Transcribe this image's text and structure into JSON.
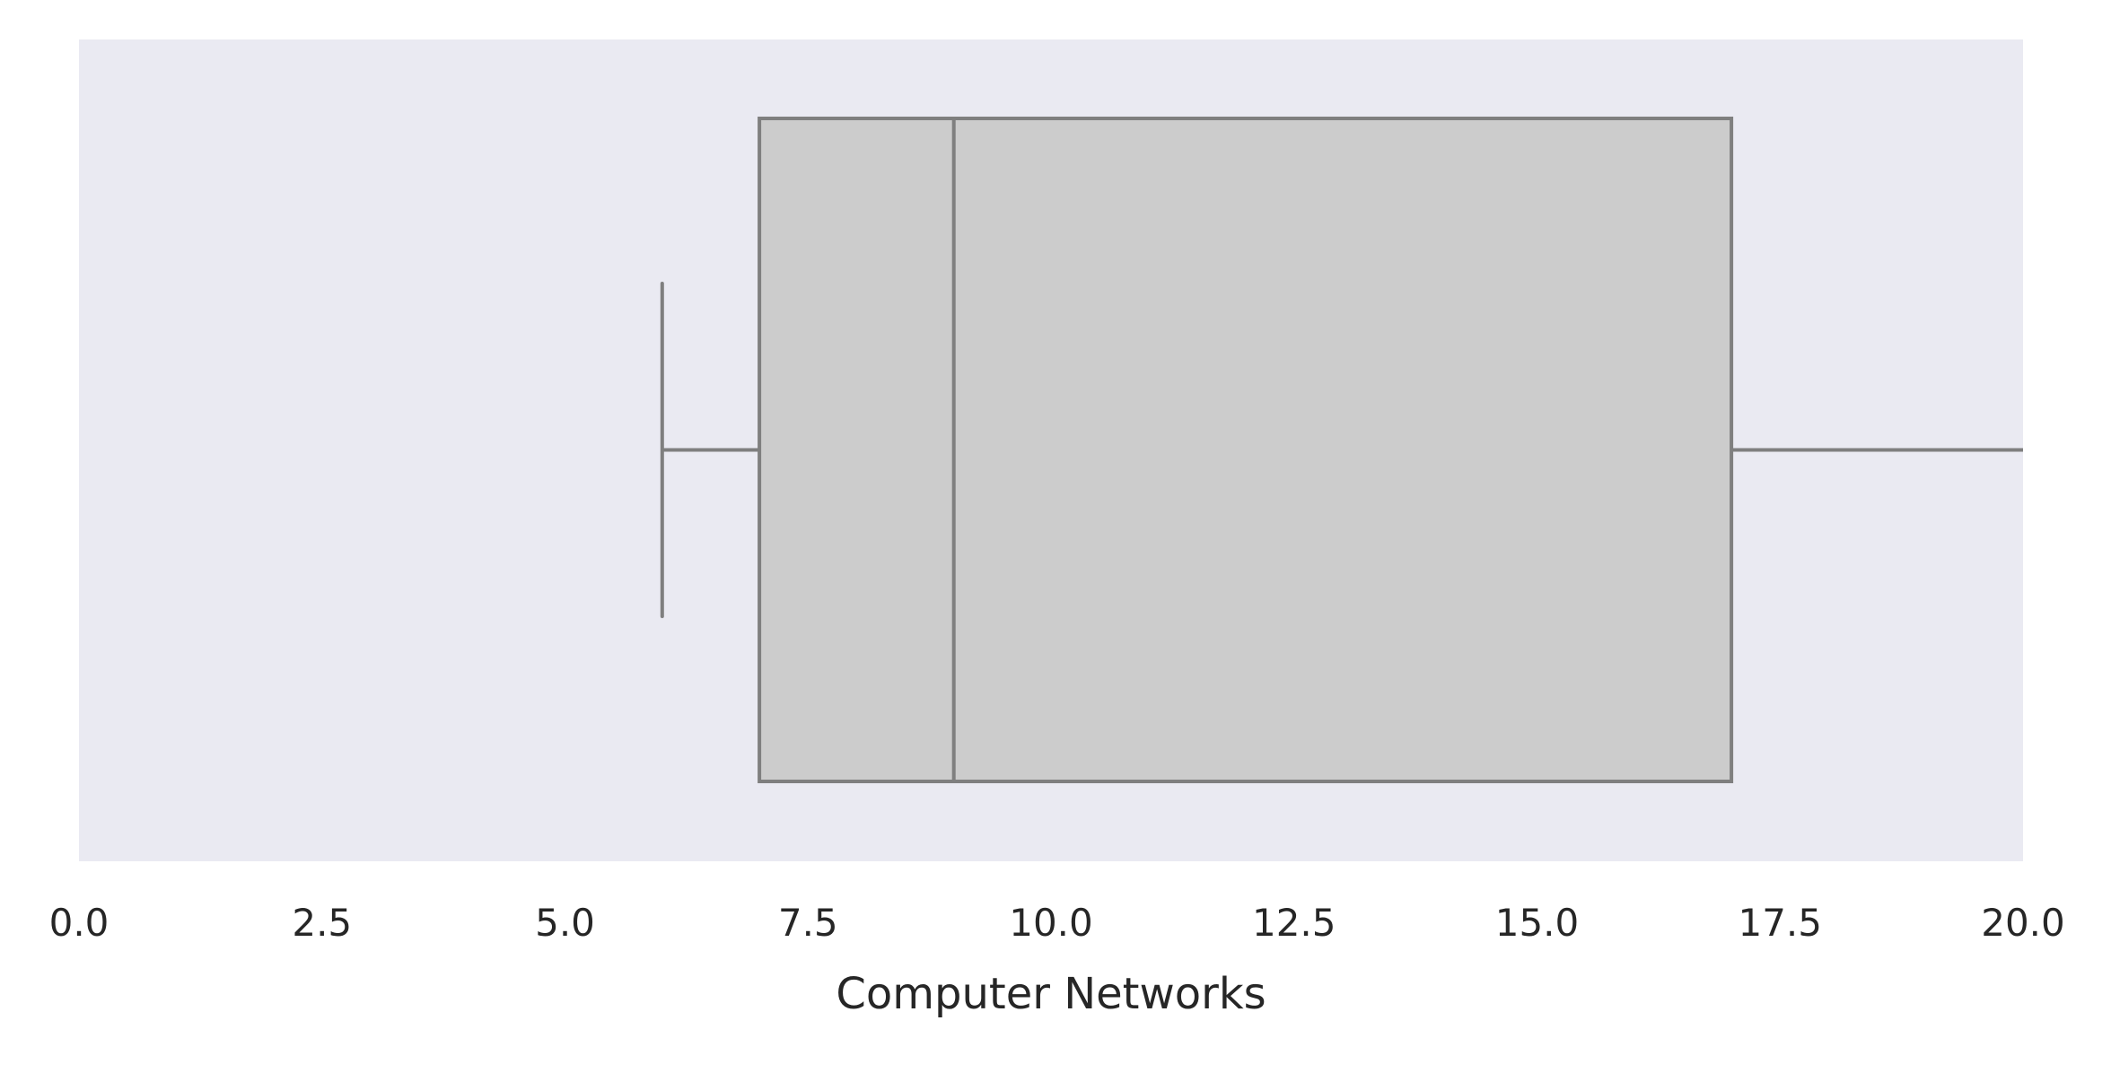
{
  "chart_data": {
    "type": "boxplot",
    "orientation": "horizontal",
    "xlabel": "Computer Networks",
    "xlim": [
      0.0,
      20.0
    ],
    "xticks": [
      0.0,
      2.5,
      5.0,
      7.5,
      10.0,
      12.5,
      15.0,
      17.5,
      20.0
    ],
    "xtick_labels": [
      "0.0",
      "2.5",
      "5.0",
      "7.5",
      "10.0",
      "12.5",
      "15.0",
      "17.5",
      "20.0"
    ],
    "grid": false,
    "box": {
      "whisker_low": 6.0,
      "q1": 7.0,
      "median": 9.0,
      "q3": 17.0,
      "whisker_high": 20.0
    },
    "colors": {
      "plot_background": "#eaeaf2",
      "box_fill": "#cccccc",
      "line": "#7f7f7f",
      "text": "#262626"
    }
  }
}
